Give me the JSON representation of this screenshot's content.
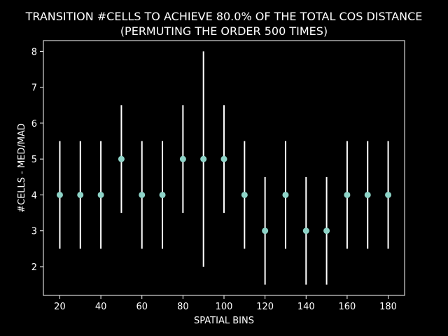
{
  "chart_data": {
    "type": "scatter",
    "title_line1": "TRANSITION #CELLS TO ACHIEVE 80.0% OF THE TOTAL COS DISTANCE",
    "title_line2": "(PERMUTING THE ORDER 500 TIMES)",
    "xlabel": "SPATIAL BINS",
    "ylabel": "#CELLS - MED/MAD",
    "xlim": [
      12,
      188
    ],
    "ylim": [
      1.2,
      8.3
    ],
    "xticks": [
      20,
      40,
      60,
      80,
      100,
      120,
      140,
      160,
      180
    ],
    "yticks": [
      2,
      3,
      4,
      5,
      6,
      7,
      8
    ],
    "x": [
      20,
      30,
      40,
      50,
      60,
      70,
      80,
      90,
      100,
      110,
      120,
      130,
      140,
      150,
      160,
      170,
      180
    ],
    "y": [
      4,
      4,
      4,
      5,
      4,
      4,
      5,
      5,
      5,
      4,
      3,
      4,
      3,
      3,
      4,
      4,
      4
    ],
    "yerr": [
      1.5,
      1.5,
      1.5,
      1.5,
      1.5,
      1.5,
      1.5,
      3,
      1.5,
      1.5,
      1.5,
      1.5,
      1.5,
      1.5,
      1.5,
      1.5,
      1.5
    ],
    "colors": {
      "background": "#000000",
      "axes": "#ffffff",
      "marker": "#8dd3c7",
      "errorbar": "#ffffff"
    }
  }
}
